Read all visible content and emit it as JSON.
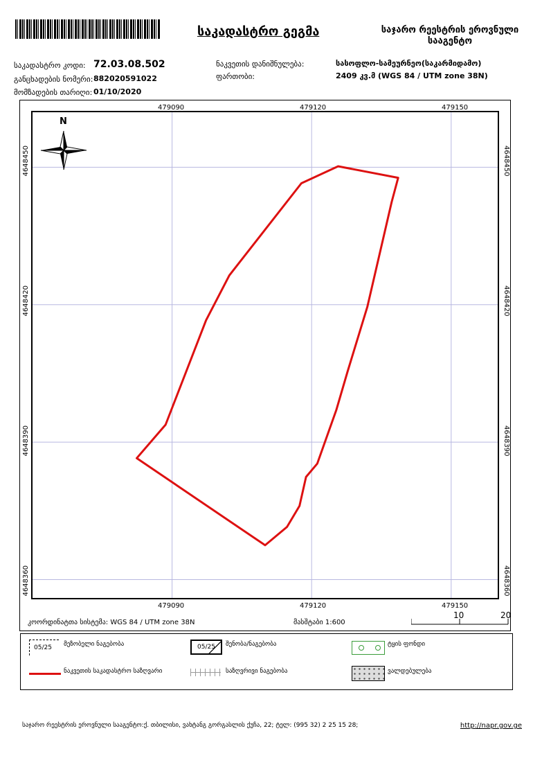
{
  "header": {
    "title": "საკადასტრო გეგმა",
    "agency_line1": "საჯარო რეესტრის ეროვნული",
    "agency_line2": "სააგენტო"
  },
  "meta": {
    "cadastral_code_label": "საკადასტრო კოდი:",
    "cadastral_code": "72.03.08.502",
    "application_no_label": "განცხადების ნომერი:",
    "application_no": "882020591022",
    "prepared_date_label": "მომზადების თარიღი:",
    "prepared_date": "01/10/2020",
    "purpose_label": "ნაკვეთის დანიშნულება:",
    "purpose": "სასოფლო-სამეურნეო(საკარმიდამო)",
    "area_label": "ფართობი:",
    "area": "2409 კვ.მ (WGS 84 / UTM zone 38N)"
  },
  "map": {
    "north_label": "N",
    "x_ticks": [
      "479090",
      "479120",
      "479150"
    ],
    "y_ticks": [
      "4648450",
      "4648420",
      "4648390",
      "4648360"
    ],
    "x_range": [
      479060,
      479160
    ],
    "y_range": [
      4648462,
      4648356
    ],
    "parcel_color": "#dd1111",
    "grid_color": "#b8b8e0",
    "parcel_polygon": [
      [
        479125.7,
        4648450.2
      ],
      [
        479138.6,
        4648447.7
      ],
      [
        479137.2,
        4648442.4
      ],
      [
        479132.0,
        4648419.6
      ],
      [
        479127.7,
        4648405.3
      ],
      [
        479125.3,
        4648397.0
      ],
      [
        479121.2,
        4648385.3
      ],
      [
        479118.8,
        4648382.4
      ],
      [
        479117.4,
        4648376.1
      ],
      [
        479114.7,
        4648371.5
      ],
      [
        479110.0,
        4648367.5
      ],
      [
        479082.4,
        4648386.5
      ],
      [
        479088.6,
        4648393.8
      ],
      [
        479097.3,
        4648416.6
      ],
      [
        479102.3,
        4648426.4
      ],
      [
        479117.8,
        4648446.5
      ]
    ]
  },
  "bottom": {
    "crs_text": "კოორდინატთა სისტემა: WGS 84 / UTM zone 38N",
    "scale_text": "მასშტაბი 1:600",
    "scale_10": "10",
    "scale_20": "20"
  },
  "legend": {
    "neighbor_parcel": "მეზობელი ნაგებობა",
    "neighbor_code": "05/25",
    "building": "შენობა/ნაგებობა",
    "building_code": "05/25",
    "forest_fund": "ტყის ფონდი",
    "parcel_boundary": "ნაკვეთის საკადასტრო საზღვარი",
    "border_structure": "საზღვრივი ნაგებობა",
    "valley": "ვალდებულება"
  },
  "footer": {
    "address": "საჯარო რეესტრის ეროვნული სააგენტო:ქ. თბილისი, ვახტანგ გორგასლის ქუჩა, 22; ტელ: (995 32) 2 25 15 28;",
    "url": "http://napr.gov.ge"
  }
}
